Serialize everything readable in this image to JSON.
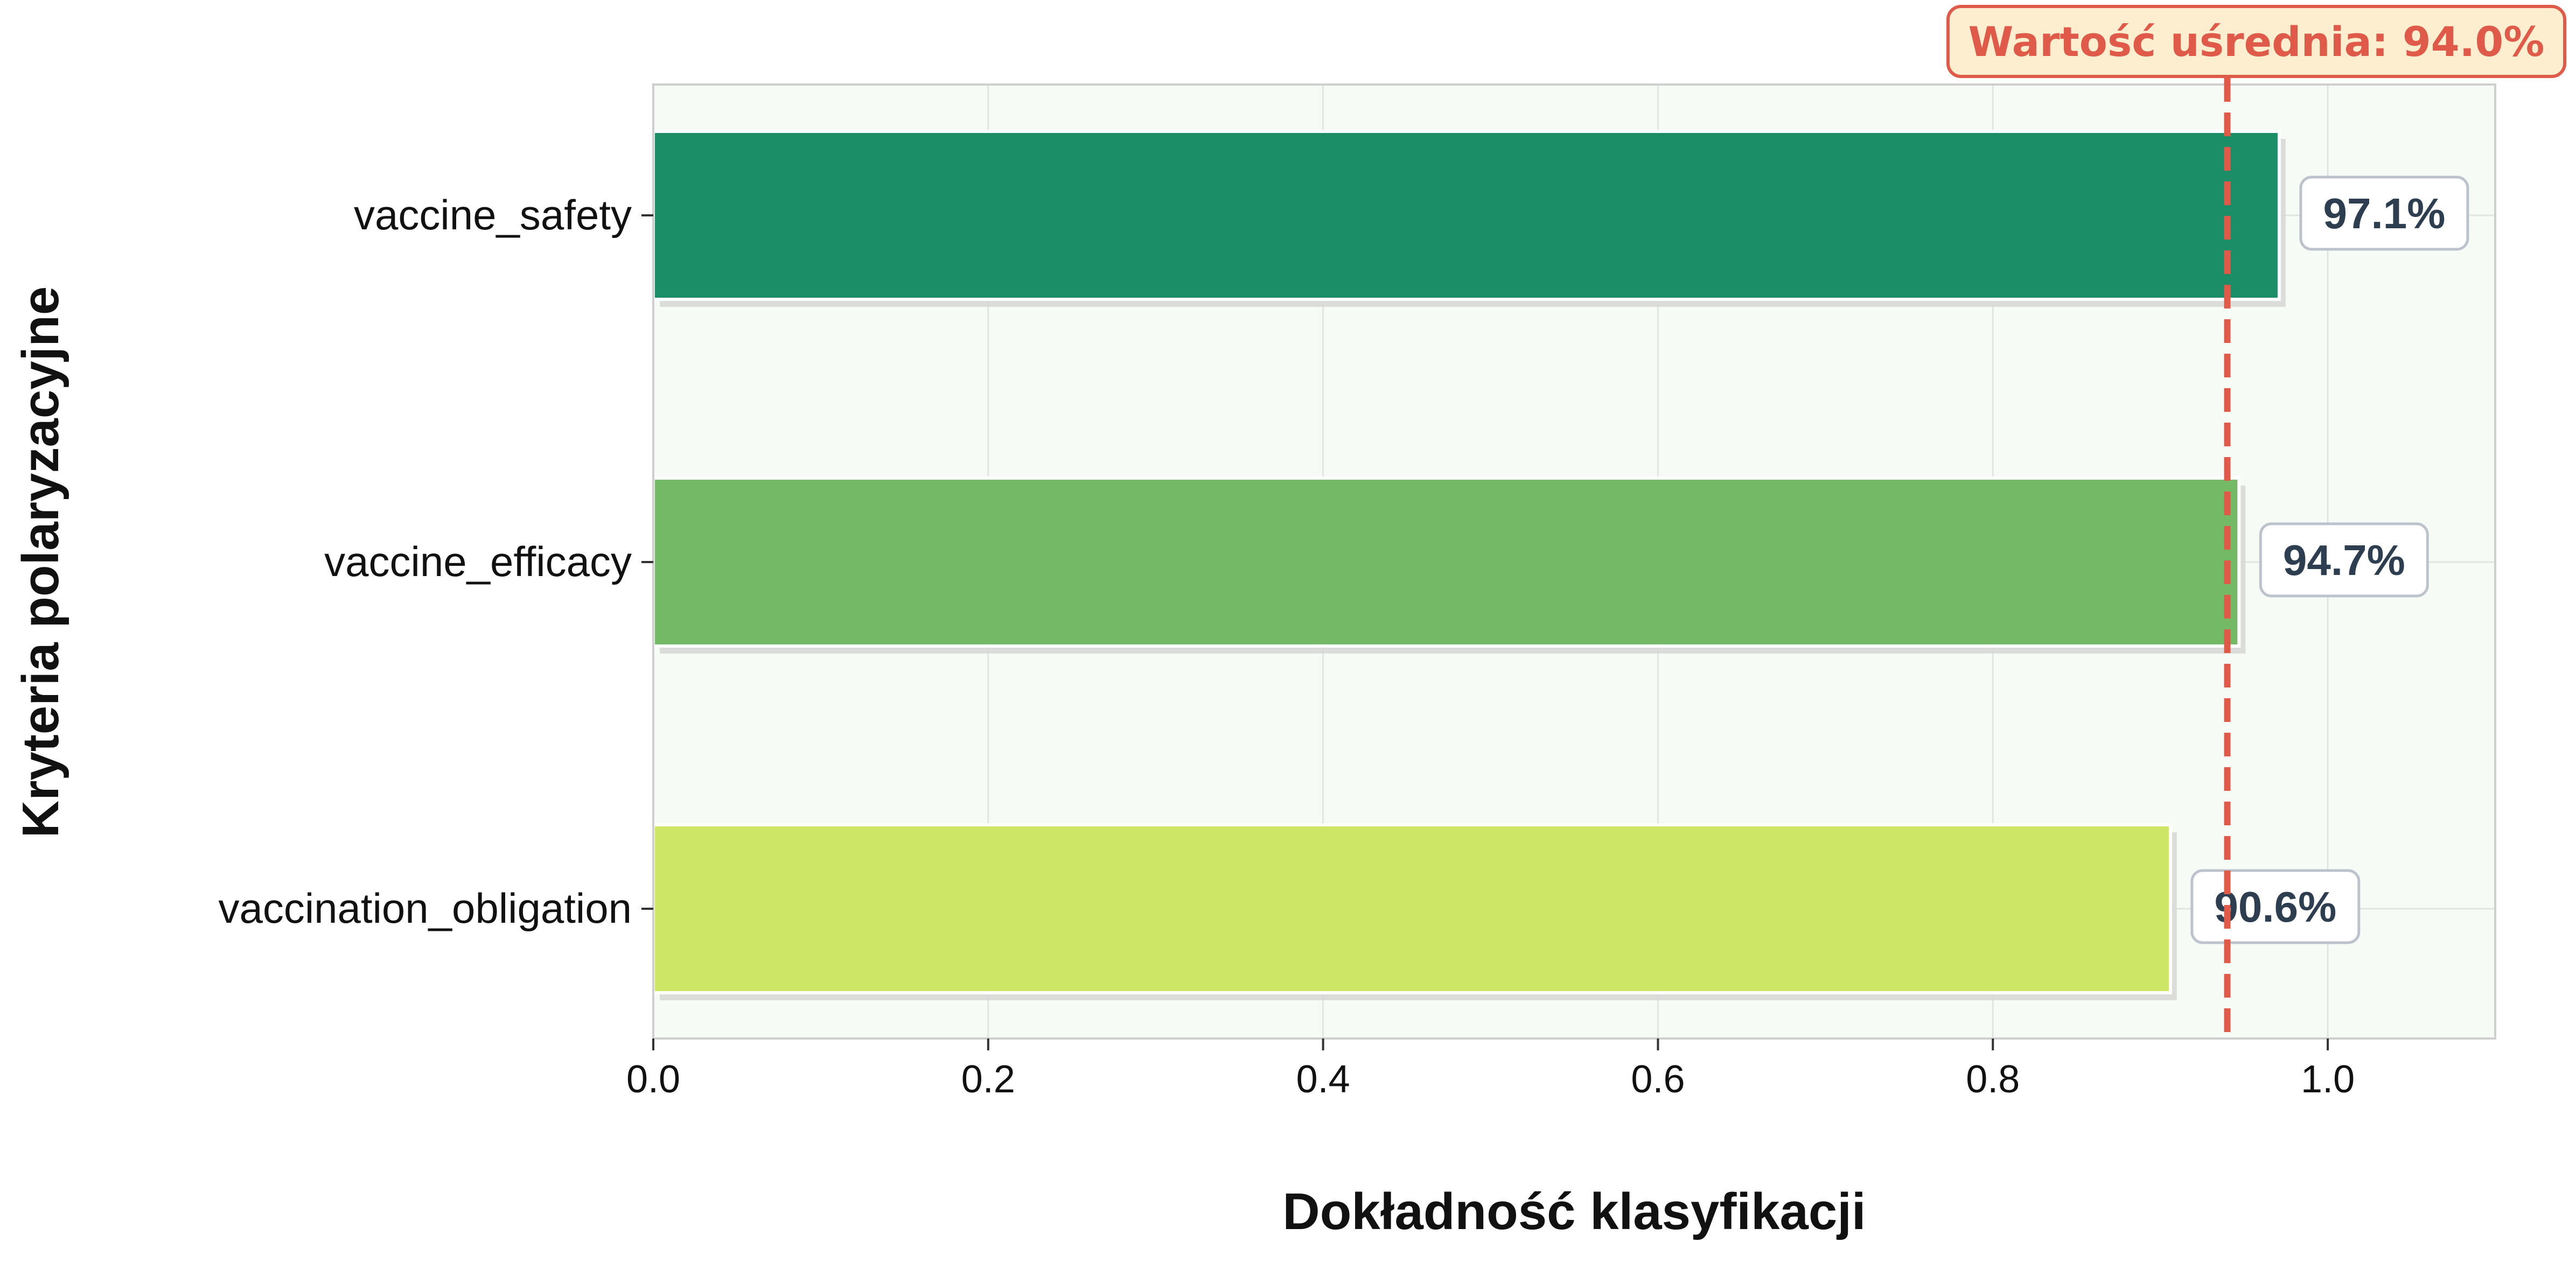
{
  "chart_data": {
    "type": "bar",
    "orientation": "horizontal",
    "categories": [
      "vaccine_safety",
      "vaccine_efficacy",
      "vaccination_obligation"
    ],
    "values": [
      0.971,
      0.947,
      0.906
    ],
    "value_labels": [
      "97.1%",
      "94.7%",
      "90.6%"
    ],
    "bar_colors": [
      "#1b8e68",
      "#73b966",
      "#cde665"
    ],
    "xlabel": "Dokładność klasyfikacji",
    "ylabel": "Kryteria polaryzacyjne",
    "xlim": [
      0,
      1.1
    ],
    "xticks": [
      0.0,
      0.2,
      0.4,
      0.6,
      0.8,
      1.0
    ],
    "xtick_labels": [
      "0.0",
      "0.2",
      "0.4",
      "0.6",
      "0.8",
      "1.0"
    ],
    "grid": true,
    "reference_line": {
      "value": 0.94,
      "label": "Wartość uśrednia: 94.0%",
      "color": "#e05a4a",
      "style": "dashed"
    },
    "plot_background": "#f7fbf6"
  }
}
